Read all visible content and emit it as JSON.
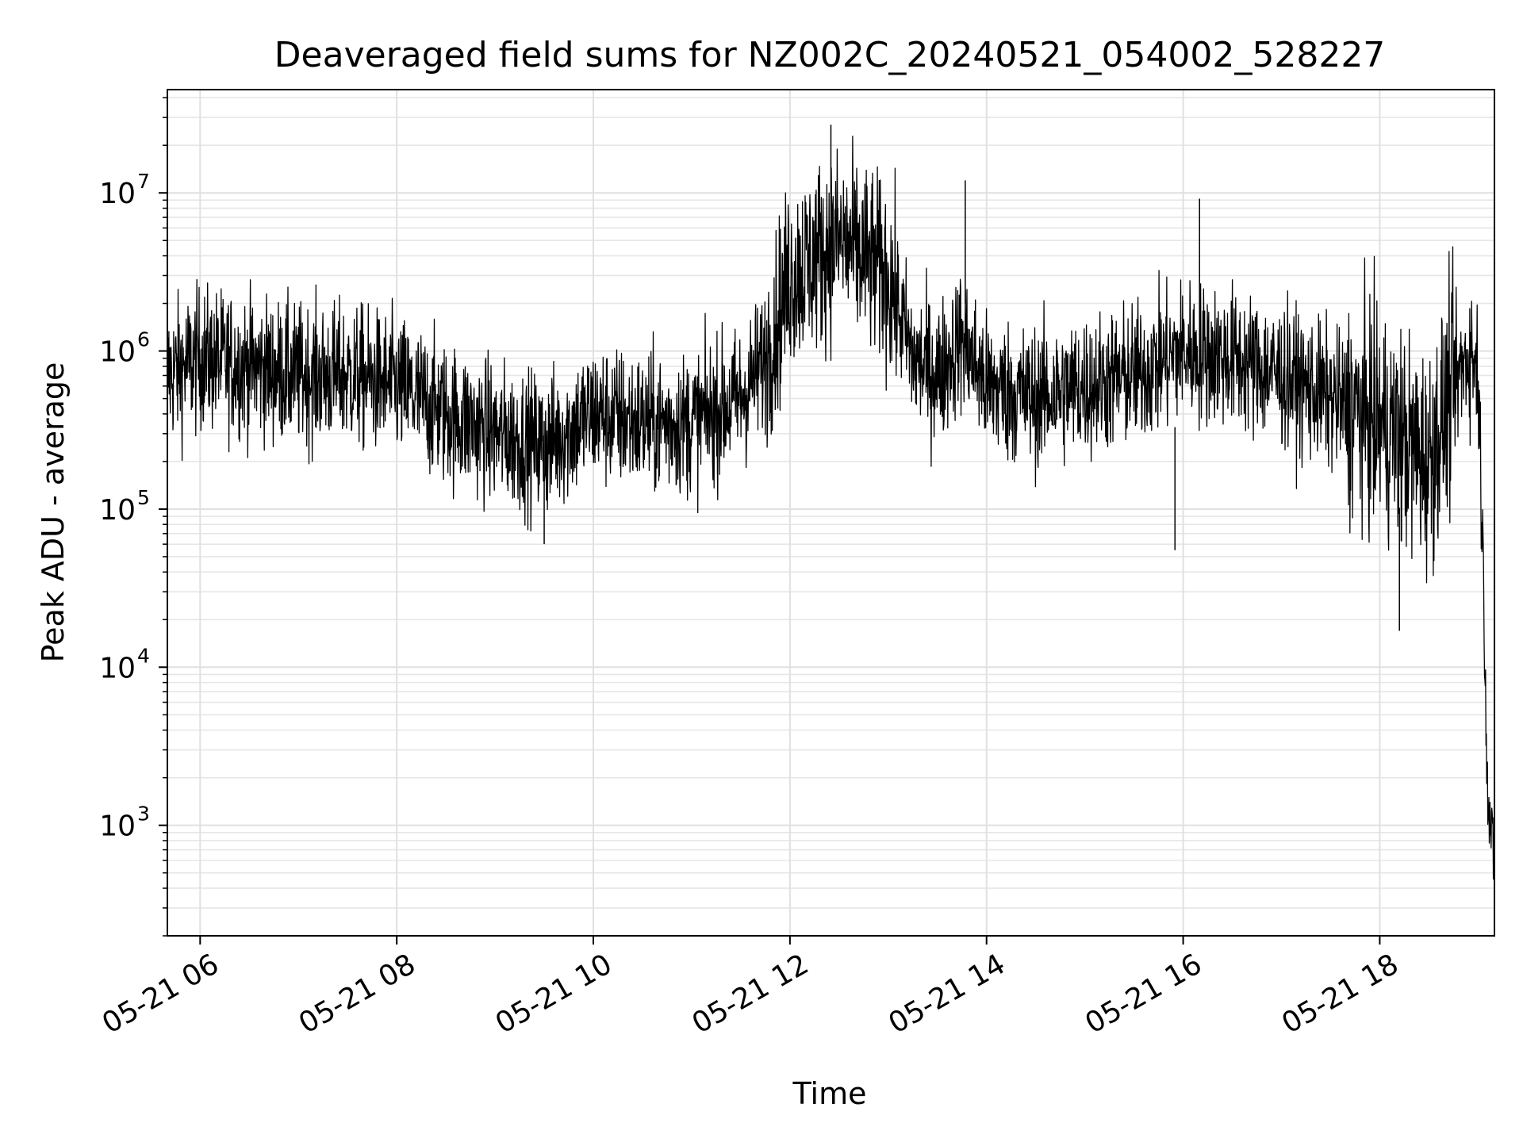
{
  "chart_data": {
    "type": "line",
    "title": "Deaveraged field sums for NZ002C_20240521_054002_528227",
    "xlabel": "Time",
    "ylabel": "Peak ADU - average",
    "y_scale": "log",
    "grid": true,
    "xlim": [
      "2024-05-21 05:40",
      "2024-05-21 19:10"
    ],
    "ylim": [
      200,
      45000000
    ],
    "x_ticks": [
      {
        "value": "2024-05-21 06:00",
        "label": "05-21 06"
      },
      {
        "value": "2024-05-21 08:00",
        "label": "05-21 08"
      },
      {
        "value": "2024-05-21 10:00",
        "label": "05-21 10"
      },
      {
        "value": "2024-05-21 12:00",
        "label": "05-21 12"
      },
      {
        "value": "2024-05-21 14:00",
        "label": "05-21 14"
      },
      {
        "value": "2024-05-21 16:00",
        "label": "05-21 16"
      },
      {
        "value": "2024-05-21 18:00",
        "label": "05-21 18"
      }
    ],
    "y_ticks": [
      {
        "value": 1000,
        "base": "10",
        "exp": "3"
      },
      {
        "value": 10000,
        "base": "10",
        "exp": "4"
      },
      {
        "value": 100000,
        "base": "10",
        "exp": "5"
      },
      {
        "value": 1000000,
        "base": "10",
        "exp": "6"
      },
      {
        "value": 10000000,
        "base": "10",
        "exp": "7"
      }
    ],
    "series": [
      {
        "color": "#000000",
        "x": [
          "2024-05-21 05:40",
          "2024-05-21 06:00",
          "2024-05-21 06:30",
          "2024-05-21 07:00",
          "2024-05-21 07:30",
          "2024-05-21 08:00",
          "2024-05-21 08:30",
          "2024-05-21 09:00",
          "2024-05-21 09:30",
          "2024-05-21 10:00",
          "2024-05-21 10:30",
          "2024-05-21 11:00",
          "2024-05-21 11:30",
          "2024-05-21 11:45",
          "2024-05-21 12:00",
          "2024-05-21 12:30",
          "2024-05-21 13:00",
          "2024-05-21 13:15",
          "2024-05-21 13:30",
          "2024-05-21 13:45",
          "2024-05-21 14:00",
          "2024-05-21 14:30",
          "2024-05-21 15:00",
          "2024-05-21 15:30",
          "2024-05-21 16:00",
          "2024-05-21 16:30",
          "2024-05-21 17:00",
          "2024-05-21 17:30",
          "2024-05-21 18:00",
          "2024-05-21 18:30",
          "2024-05-21 18:45",
          "2024-05-21 18:55",
          "2024-05-21 19:00",
          "2024-05-21 19:03",
          "2024-05-21 19:06",
          "2024-05-21 19:10"
        ],
        "values": [
          700000,
          900000,
          800000,
          700000,
          700000,
          600000,
          400000,
          300000,
          250000,
          400000,
          350000,
          350000,
          500000,
          900000,
          3000000,
          5000000,
          3000000,
          900000,
          700000,
          1200000,
          600000,
          500000,
          600000,
          700000,
          1000000,
          900000,
          700000,
          500000,
          350000,
          200000,
          600000,
          1000000,
          800000,
          50000,
          1500,
          500
        ]
      }
    ],
    "annotations": [
      {
        "x": "2024-05-21 12:25",
        "value": 27000000
      },
      {
        "x": "2024-05-21 13:47",
        "value": 12000000
      },
      {
        "x": "2024-05-21 16:10",
        "value": 9200000
      },
      {
        "x": "2024-05-21 09:30",
        "value": 60000
      },
      {
        "x": "2024-05-21 15:55",
        "value": 55000
      },
      {
        "x": "2024-05-21 18:12",
        "value": 17000
      }
    ]
  }
}
